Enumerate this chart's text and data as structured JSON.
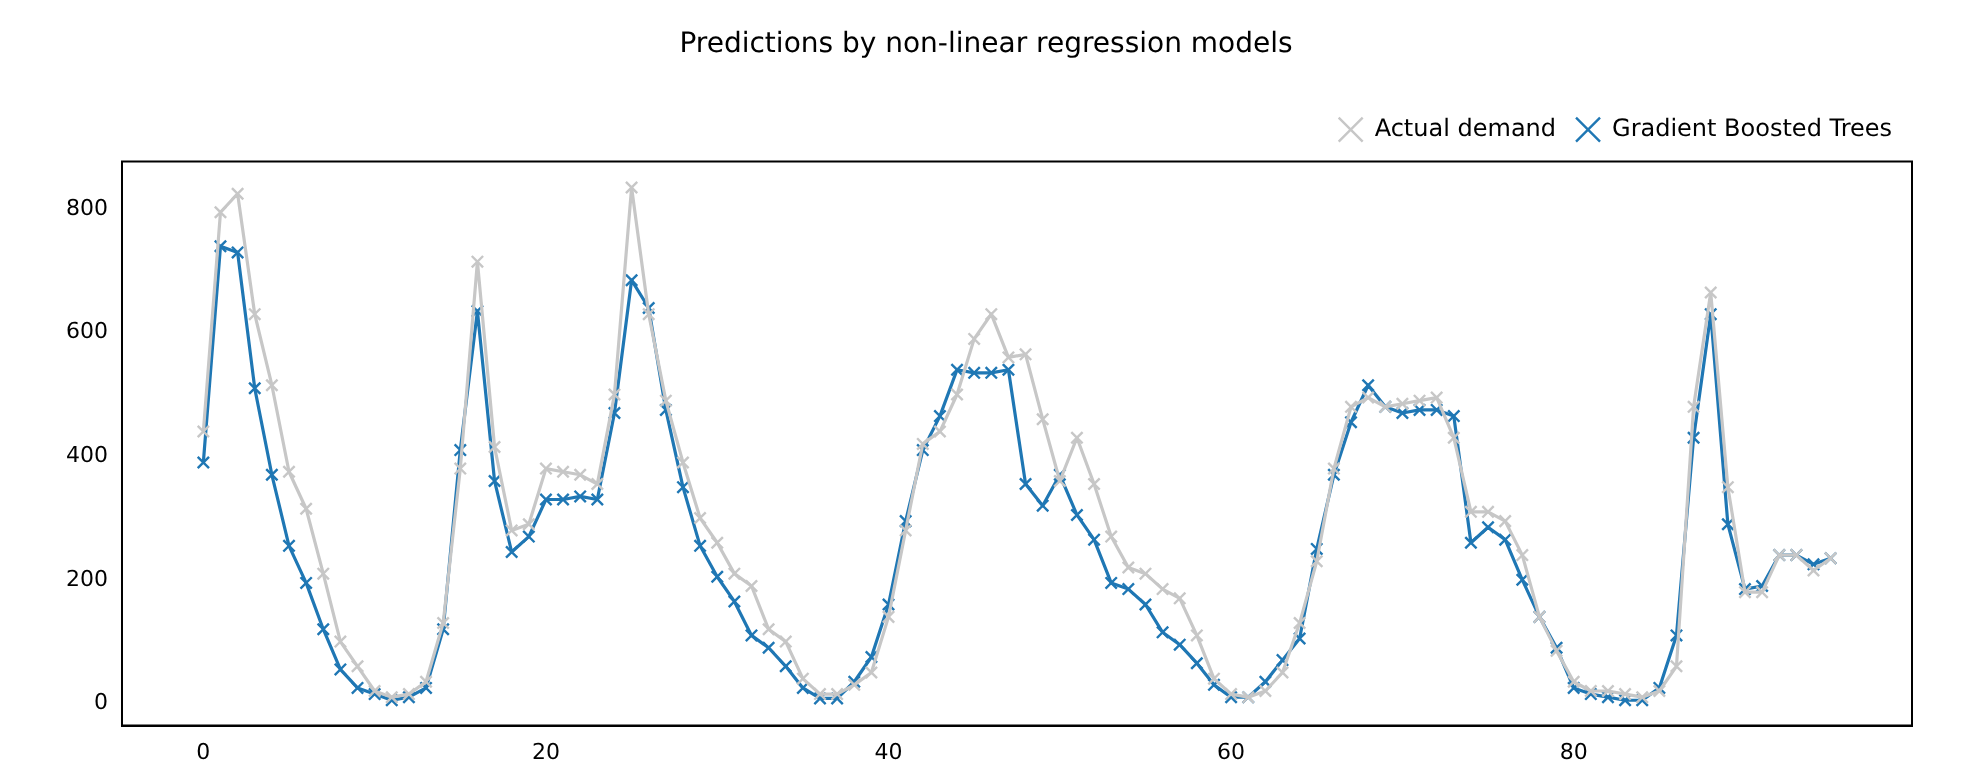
{
  "chart_data": {
    "type": "line",
    "title": "Predictions by non-linear regression models",
    "x": [
      0,
      1,
      2,
      3,
      4,
      5,
      6,
      7,
      8,
      9,
      10,
      11,
      12,
      13,
      14,
      15,
      16,
      17,
      18,
      19,
      20,
      21,
      22,
      23,
      24,
      25,
      26,
      27,
      28,
      29,
      30,
      31,
      32,
      33,
      34,
      35,
      36,
      37,
      38,
      39,
      40,
      41,
      42,
      43,
      44,
      45,
      46,
      47,
      48,
      49,
      50,
      51,
      52,
      53,
      54,
      55,
      56,
      57,
      58,
      59,
      60,
      61,
      62,
      63,
      64,
      65,
      66,
      67,
      68,
      69,
      70,
      71,
      72,
      73,
      74,
      75,
      76,
      77,
      78,
      79,
      80,
      81,
      82,
      83,
      84,
      85,
      86,
      87,
      88,
      89,
      90,
      91,
      92,
      93,
      94,
      95
    ],
    "series": [
      {
        "name": "Actual demand",
        "color": "#c7c7c7",
        "values": [
          440,
          795,
          825,
          630,
          515,
          375,
          315,
          210,
          100,
          60,
          20,
          10,
          15,
          35,
          130,
          380,
          715,
          415,
          280,
          290,
          380,
          375,
          370,
          355,
          500,
          835,
          630,
          490,
          390,
          300,
          260,
          210,
          190,
          120,
          100,
          40,
          15,
          15,
          30,
          50,
          140,
          280,
          420,
          440,
          500,
          590,
          630,
          560,
          565,
          460,
          360,
          430,
          355,
          270,
          220,
          210,
          185,
          170,
          110,
          40,
          15,
          10,
          20,
          50,
          130,
          230,
          380,
          480,
          495,
          480,
          485,
          490,
          495,
          430,
          310,
          310,
          295,
          240,
          140,
          85,
          35,
          20,
          20,
          15,
          10,
          20,
          60,
          480,
          665,
          350,
          180,
          180,
          240,
          240,
          215,
          235
        ]
      },
      {
        "name": "Gradient Boosted Trees",
        "color": "#1f77b4",
        "values": [
          390,
          740,
          730,
          510,
          370,
          255,
          195,
          120,
          55,
          25,
          15,
          5,
          10,
          25,
          120,
          410,
          635,
          360,
          245,
          270,
          330,
          330,
          335,
          330,
          470,
          685,
          640,
          475,
          350,
          255,
          205,
          165,
          110,
          90,
          60,
          25,
          8,
          8,
          35,
          75,
          160,
          295,
          410,
          465,
          540,
          535,
          535,
          540,
          355,
          320,
          370,
          305,
          265,
          195,
          185,
          160,
          115,
          95,
          65,
          30,
          10,
          10,
          35,
          70,
          105,
          250,
          370,
          455,
          515,
          480,
          470,
          475,
          475,
          465,
          260,
          285,
          265,
          200,
          140,
          90,
          25,
          15,
          10,
          5,
          5,
          25,
          110,
          430,
          630,
          290,
          185,
          190,
          240,
          240,
          225,
          235
        ]
      }
    ],
    "xlim": [
      -4.75,
      99.75
    ],
    "xticks": [
      0,
      20,
      40,
      60,
      80
    ],
    "ylim": [
      -36,
      877
    ],
    "yticks": [
      0,
      200,
      400,
      600,
      800
    ],
    "marker": "cross",
    "line_style": "solid",
    "legend": "top right",
    "grid": false
  }
}
